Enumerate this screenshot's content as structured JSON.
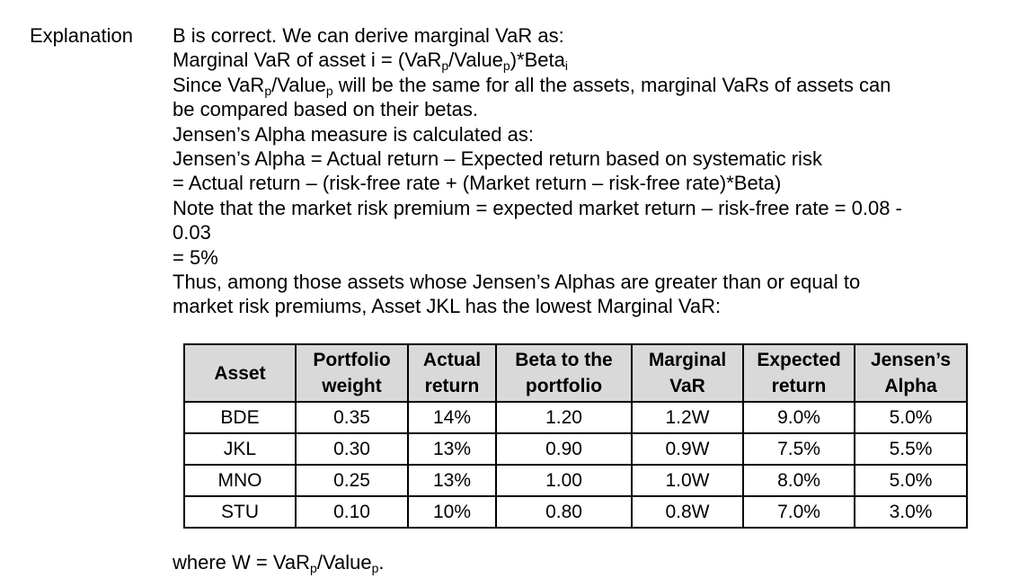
{
  "label": "Explanation",
  "lines": [
    {
      "parts": [
        {
          "t": "B is correct. We can derive marginal VaR as:"
        }
      ]
    },
    {
      "parts": [
        {
          "t": "Marginal VaR of asset i = (VaR"
        },
        {
          "t": "p",
          "sub": true
        },
        {
          "t": "/Value"
        },
        {
          "t": "p",
          "sub": true
        },
        {
          "t": ")*Beta"
        },
        {
          "t": "i",
          "sub": true
        }
      ]
    },
    {
      "parts": [
        {
          "t": "Since VaR"
        },
        {
          "t": "p",
          "sub": true
        },
        {
          "t": "/Value"
        },
        {
          "t": "p",
          "sub": true
        },
        {
          "t": " will be the same for all the assets, marginal VaRs of assets can"
        }
      ]
    },
    {
      "parts": [
        {
          "t": "be compared based on their betas."
        }
      ]
    },
    {
      "parts": [
        {
          "t": "Jensen’s Alpha measure is calculated as:"
        }
      ]
    },
    {
      "parts": [
        {
          "t": "Jensen’s Alpha = Actual return – Expected return based on systematic risk"
        }
      ]
    },
    {
      "parts": [
        {
          "t": "= Actual return – (risk-free rate + (Market return – risk-free rate)*Beta)"
        }
      ]
    },
    {
      "parts": [
        {
          "t": "Note that the market risk premium = expected market return – risk-free rate = 0.08 -"
        }
      ]
    },
    {
      "parts": [
        {
          "t": "0.03"
        }
      ]
    },
    {
      "parts": [
        {
          "t": "= 5%"
        }
      ]
    },
    {
      "parts": [
        {
          "t": "Thus, among those assets whose Jensen’s Alphas are greater than or equal to"
        }
      ]
    },
    {
      "parts": [
        {
          "t": "market risk premiums, Asset JKL has the lowest Marginal VaR:"
        }
      ]
    }
  ],
  "table": {
    "headers": [
      [
        "Asset"
      ],
      [
        "Portfolio",
        "weight"
      ],
      [
        "Actual",
        "return"
      ],
      [
        "Beta to the",
        "portfolio"
      ],
      [
        "Marginal",
        "VaR"
      ],
      [
        "Expected",
        "return"
      ],
      [
        "Jensen’s",
        "Alpha"
      ]
    ],
    "rows": [
      [
        "BDE",
        "0.35",
        "14%",
        "1.20",
        "1.2W",
        "9.0%",
        "5.0%"
      ],
      [
        "JKL",
        "0.30",
        "13%",
        "0.90",
        "0.9W",
        "7.5%",
        "5.5%"
      ],
      [
        "MNO",
        "0.25",
        "13%",
        "1.00",
        "1.0W",
        "8.0%",
        "5.0%"
      ],
      [
        "STU",
        "0.10",
        "10%",
        "0.80",
        "0.8W",
        "7.0%",
        "3.0%"
      ]
    ]
  },
  "note": {
    "parts": [
      {
        "t": "where W = VaR"
      },
      {
        "t": "p",
        "sub": true
      },
      {
        "t": "/Value"
      },
      {
        "t": "p",
        "sub": true
      },
      {
        "t": "."
      }
    ]
  }
}
